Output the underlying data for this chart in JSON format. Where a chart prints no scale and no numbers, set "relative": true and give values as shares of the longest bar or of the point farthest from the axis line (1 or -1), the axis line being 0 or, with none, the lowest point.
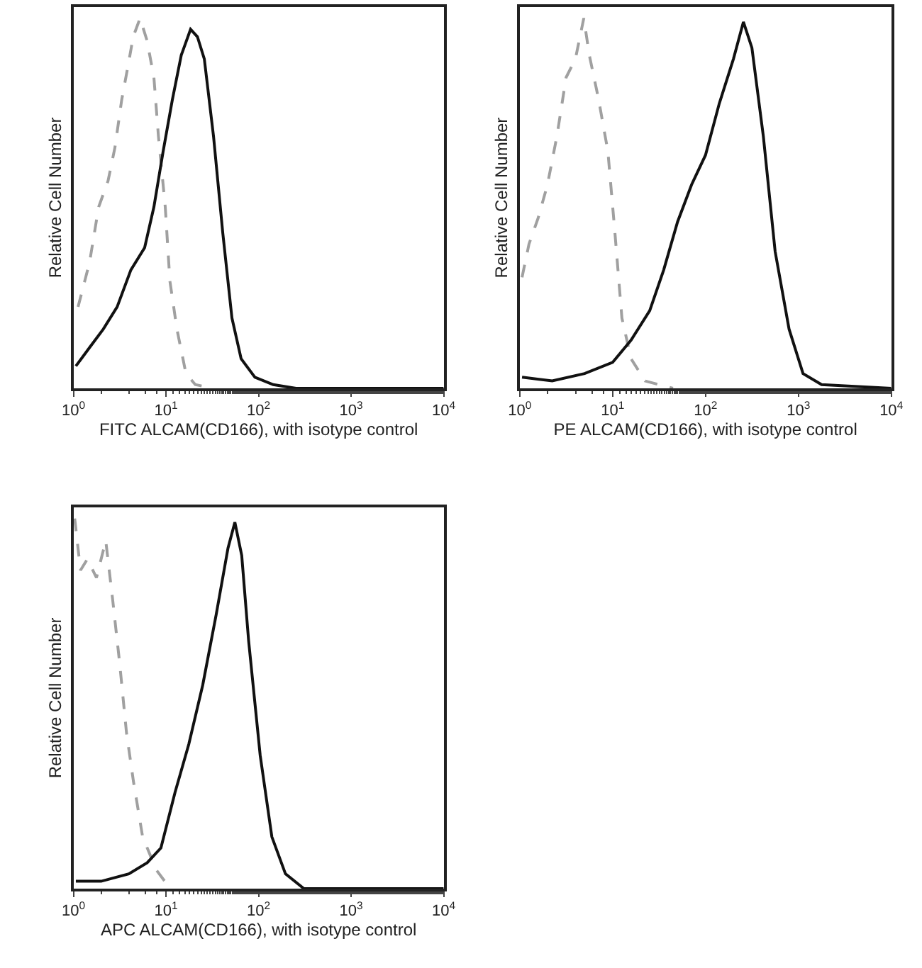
{
  "chart_data": [
    {
      "type": "line",
      "xlabel": "FITC ALCAM(CD166), with isotype control",
      "ylabel": "Relative Cell Number",
      "log": "x",
      "relative": true,
      "tick_labels": "x",
      "xlim": [
        1,
        10000
      ],
      "xticks": [
        {
          "value": 1,
          "label": "10$^{0}$"
        },
        {
          "value": 10,
          "label": "10$^{1}$"
        },
        {
          "value": 100,
          "label": "10$^{2}$"
        },
        {
          "value": 1000,
          "label": "10$^{3}$"
        },
        {
          "value": 10000,
          "label": "10$^{4}$"
        }
      ],
      "series": [
        {
          "color": "#a0a0a0",
          "line_style": "dashed",
          "x": [
            1.12,
            1.49,
            1.87,
            2.36,
            2.8,
            3.32,
            3.94,
            4.42,
            5.24,
            6.22,
            7.39,
            8.28,
            9.8,
            11.0,
            13.1,
            16.4,
            20.7,
            32.6
          ],
          "values": [
            0.22,
            0.34,
            0.49,
            0.56,
            0.65,
            0.78,
            0.88,
            0.95,
            1.0,
            0.94,
            0.84,
            0.68,
            0.49,
            0.29,
            0.16,
            0.04,
            0.01,
            0
          ]
        },
        {
          "color": "#111111",
          "line_style": "solid",
          "x": [
            1.06,
            1.49,
            2.1,
            2.96,
            4.17,
            5.87,
            7.39,
            9.3,
            11.7,
            14.6,
            18.4,
            21.8,
            25.9,
            32.6,
            41.0,
            51.5,
            64.7,
            91.2,
            144,
            254,
            10000
          ],
          "values": [
            0.06,
            0.11,
            0.16,
            0.22,
            0.32,
            0.38,
            0.49,
            0.64,
            0.78,
            0.9,
            0.97,
            0.95,
            0.89,
            0.68,
            0.42,
            0.19,
            0.08,
            0.03,
            0.01,
            0,
            0
          ]
        }
      ]
    },
    {
      "type": "line",
      "xlabel": "PE ALCAM(CD166), with isotype control",
      "ylabel": "Relative Cell Number",
      "log": "x",
      "relative": true,
      "tick_labels": "x",
      "xlim": [
        1,
        10000
      ],
      "xticks": [
        {
          "value": 1,
          "label": "10$^{0}$"
        },
        {
          "value": 10,
          "label": "10$^{1}$"
        },
        {
          "value": 100,
          "label": "10$^{2}$"
        },
        {
          "value": 1000,
          "label": "10$^{3}$"
        },
        {
          "value": 10000,
          "label": "10$^{4}$"
        }
      ],
      "series": [
        {
          "color": "#a0a0a0",
          "line_style": "dashed",
          "x": [
            1.06,
            1.26,
            1.58,
            1.99,
            2.51,
            3.16,
            3.98,
            4.9,
            5.62,
            7.08,
            8.9,
            10.6,
            12.6,
            15.8,
            22.4,
            44.7
          ],
          "values": [
            0.3,
            0.39,
            0.46,
            0.55,
            0.68,
            0.84,
            0.89,
            1.0,
            0.9,
            0.78,
            0.64,
            0.42,
            0.19,
            0.08,
            0.02,
            0
          ]
        },
        {
          "color": "#111111",
          "line_style": "solid",
          "x": [
            1.06,
            2.24,
            5.0,
            10,
            15.8,
            25.1,
            35.5,
            50.1,
            70.8,
            100,
            141,
            200,
            256,
            316,
            420,
            562,
            794,
            1122,
            1778,
            10000
          ],
          "values": [
            0.03,
            0.02,
            0.04,
            0.07,
            0.13,
            0.21,
            0.32,
            0.45,
            0.55,
            0.63,
            0.77,
            0.89,
            0.99,
            0.92,
            0.68,
            0.37,
            0.16,
            0.04,
            0.01,
            0
          ]
        }
      ]
    },
    {
      "type": "line",
      "xlabel": "APC ALCAM(CD166), with isotype control",
      "ylabel": "Relative Cell Number",
      "log": "x",
      "relative": true,
      "tick_labels": "x",
      "xlim": [
        1,
        10000
      ],
      "xticks": [
        {
          "value": 1,
          "label": "10$^{0}$"
        },
        {
          "value": 10,
          "label": "10$^{1}$"
        },
        {
          "value": 100,
          "label": "10$^{2}$"
        },
        {
          "value": 1000,
          "label": "10$^{3}$"
        },
        {
          "value": 10000,
          "label": "10$^{4}$"
        }
      ],
      "series": [
        {
          "color": "#a0a0a0",
          "line_style": "dashed",
          "x": [
            1.03,
            1.19,
            1.41,
            1.77,
            2.23,
            2.65,
            3.15,
            3.74,
            4.44,
            5.58,
            7.87,
            11.1
          ],
          "values": [
            1.0,
            0.86,
            0.89,
            0.84,
            0.94,
            0.78,
            0.61,
            0.42,
            0.29,
            0.14,
            0.05,
            0
          ]
        },
        {
          "color": "#111111",
          "line_style": "solid",
          "x": [
            1.06,
            1.99,
            3.96,
            6.26,
            8.8,
            12.5,
            17.6,
            24.9,
            34.8,
            46.7,
            55.4,
            65.7,
            78.0,
            104,
            139,
            195,
            309,
            10000
          ],
          "values": [
            0.02,
            0.02,
            0.04,
            0.07,
            0.11,
            0.26,
            0.39,
            0.55,
            0.74,
            0.92,
            0.99,
            0.9,
            0.67,
            0.36,
            0.14,
            0.04,
            0,
            0
          ]
        }
      ]
    }
  ]
}
